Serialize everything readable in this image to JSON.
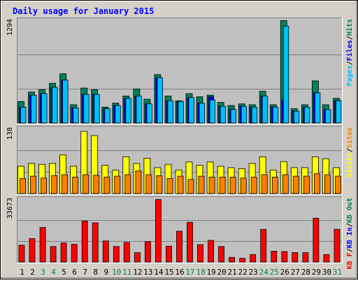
{
  "chart_data": {
    "type": "bar",
    "title": "Daily usage for January 2015",
    "days": [
      "1",
      "2",
      "3",
      "4",
      "5",
      "6",
      "7",
      "8",
      "9",
      "10",
      "11",
      "12",
      "13",
      "14",
      "15",
      "16",
      "17",
      "18",
      "19",
      "20",
      "21",
      "22",
      "23",
      "24",
      "25",
      "26",
      "27",
      "28",
      "29",
      "30",
      "31"
    ],
    "weekend_days": [
      "3",
      "4",
      "10",
      "11",
      "17",
      "18",
      "24",
      "25",
      "31"
    ],
    "colors": {
      "hits": "#00805c",
      "files": "#0000ff",
      "pages": "#00c0ff",
      "visits": "#ffff00",
      "sites": "#ff8000",
      "kbytes": "#ff0000",
      "weekday_label": "#000000",
      "weekend_label": "#00805c",
      "title": "#0000ff",
      "panel_bg": "#c0c0c0",
      "page_bg": "#d4d0c8"
    },
    "panels": [
      {
        "id": "top",
        "max_label": "1294",
        "ymax": 1294,
        "legend": [
          {
            "text": "Pages",
            "color": "#00c0ff"
          },
          {
            "text": "/",
            "color": "#000000"
          },
          {
            "text": "Files",
            "color": "#0000ff"
          },
          {
            "text": "/",
            "color": "#000000"
          },
          {
            "text": "Hits",
            "color": "#00805c"
          }
        ],
        "series": [
          {
            "name": "Hits",
            "color": "#00805c",
            "values": [
              270,
              390,
              420,
              500,
              620,
              230,
              440,
              420,
              200,
              250,
              340,
              430,
              300,
              610,
              340,
              280,
              370,
              330,
              350,
              260,
              220,
              240,
              230,
              400,
              230,
              1290,
              180,
              230,
              530,
              230,
              310
            ]
          },
          {
            "name": "Files",
            "color": "#0000ff",
            "values": [
              200,
              350,
              370,
              450,
              540,
              190,
              360,
              360,
              180,
              220,
              310,
              340,
              240,
              570,
              280,
              270,
              320,
              250,
              330,
              210,
              170,
              210,
              200,
              340,
              200,
              290,
              150,
              200,
              380,
              170,
              280
            ]
          },
          {
            "name": "Pages",
            "color": "#00c0ff",
            "values": [
              200,
              350,
              370,
              450,
              540,
              190,
              360,
              360,
              180,
              220,
              310,
              340,
              240,
              570,
              280,
              270,
              320,
              250,
              290,
              210,
              170,
              210,
              200,
              340,
              200,
              1220,
              150,
              200,
              380,
              170,
              280
            ]
          }
        ]
      },
      {
        "id": "middle",
        "max_label": "138",
        "ymax": 138,
        "legend": [
          {
            "text": "Visits",
            "color": "#ffff00"
          },
          {
            "text": "/",
            "color": "#000000"
          },
          {
            "text": "Sites",
            "color": "#ff8000"
          }
        ],
        "series": [
          {
            "name": "Visits",
            "color": "#ffff00",
            "values": [
              58,
              64,
              62,
              64,
              82,
              58,
              132,
              123,
              60,
              50,
              78,
              64,
              75,
              55,
              62,
              50,
              67,
              60,
              67,
              58,
              55,
              53,
              64,
              78,
              50,
              68,
              55,
              55,
              78,
              74,
              55
            ]
          },
          {
            "name": "Sites",
            "color": "#ff8000",
            "values": [
              32,
              37,
              33,
              38,
              40,
              35,
              40,
              39,
              35,
              37,
              40,
              48,
              40,
              38,
              32,
              37,
              30,
              37,
              35,
              35,
              35,
              33,
              35,
              40,
              35,
              40,
              37,
              37,
              42,
              40,
              37
            ]
          }
        ]
      },
      {
        "id": "bottom",
        "max_label": "33673",
        "ymax": 33673,
        "legend": [
          {
            "text": "KB F",
            "color": "#ff0000"
          },
          {
            "text": "/",
            "color": "#000000"
          },
          {
            "text": "KB In",
            "color": "#0000ff"
          },
          {
            "text": "/",
            "color": "#000000"
          },
          {
            "text": "KB Out",
            "color": "#00805c"
          }
        ],
        "series": [
          {
            "name": "KB F",
            "color": "#ff0000",
            "values": [
              9000,
              12500,
              18500,
              8300,
              10200,
              9500,
              22000,
              21000,
              11300,
              8300,
              10500,
              5000,
              11000,
              33500,
              8500,
              16500,
              21300,
              9300,
              11600,
              8300,
              2500,
              2000,
              4000,
              17500,
              5800,
              5600,
              5100,
              5000,
              23500,
              4000,
              17500
            ]
          }
        ]
      }
    ]
  }
}
